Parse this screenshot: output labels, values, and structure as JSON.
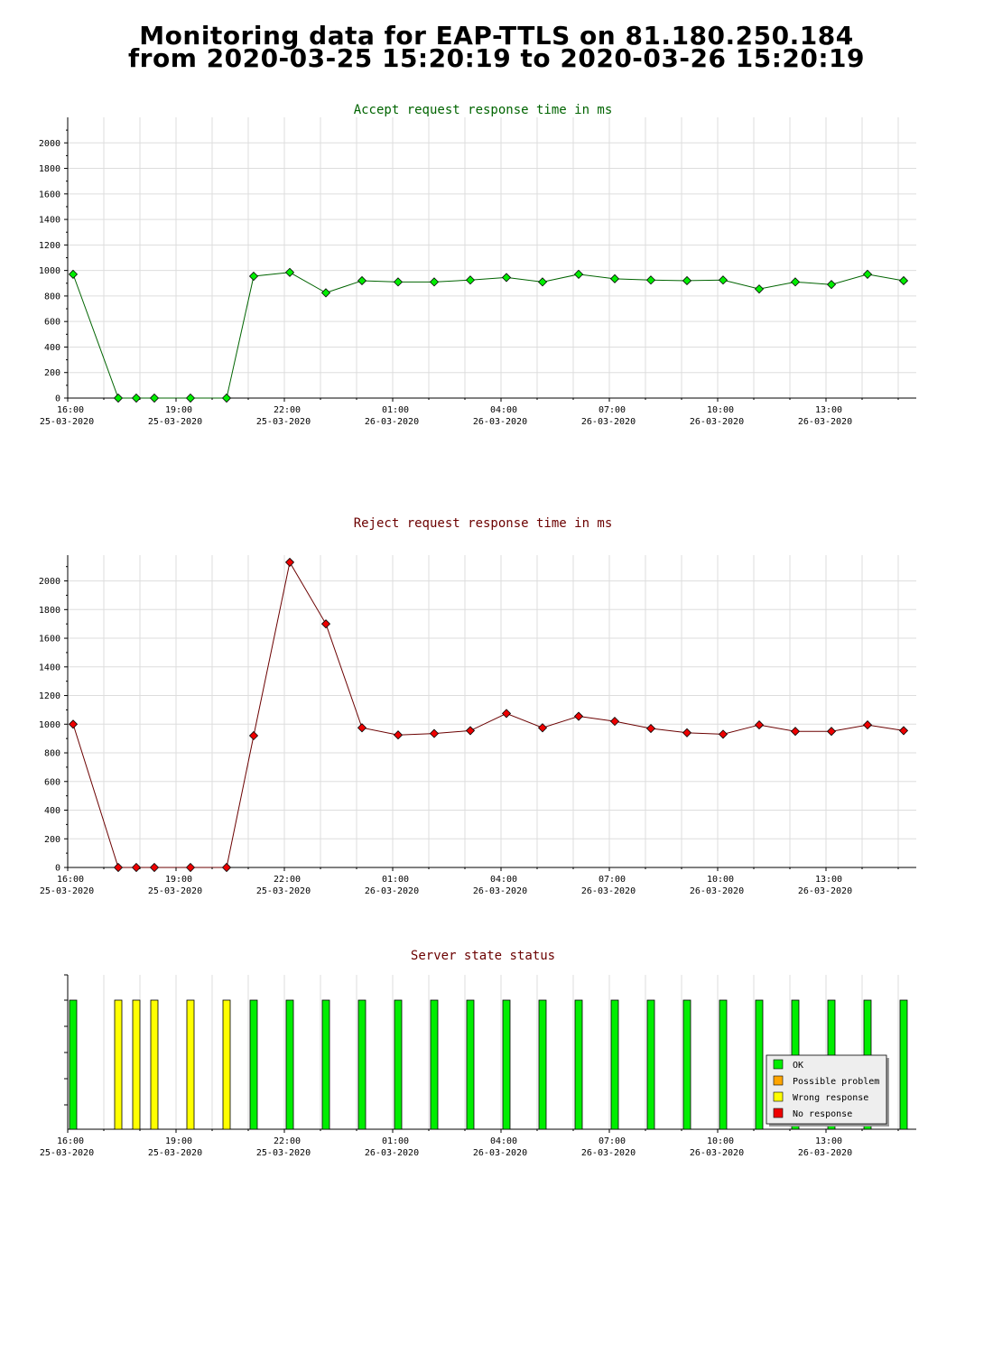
{
  "page": {
    "title_line1": "Monitoring data for EAP-TTLS on 81.180.250.184",
    "title_line2": "from 2020-03-25 15:20:19 to 2020-03-26 15:20:19"
  },
  "chart_data": [
    {
      "type": "line",
      "title": "Accept request response time in ms",
      "title_color": "#006400",
      "line_color": "#006400",
      "marker_color": "#00ee00",
      "ylim": [
        0,
        2200
      ],
      "yticks": [
        0,
        200,
        400,
        600,
        800,
        1000,
        1200,
        1400,
        1600,
        1800,
        2000
      ],
      "xlim": [
        0,
        23.5
      ],
      "xticks": [
        {
          "x": 0,
          "time": "16:00",
          "date": "25-03-2020"
        },
        {
          "x": 3,
          "time": "19:00",
          "date": "25-03-2020"
        },
        {
          "x": 6,
          "time": "22:00",
          "date": "25-03-2020"
        },
        {
          "x": 9,
          "time": "01:00",
          "date": "26-03-2020"
        },
        {
          "x": 12,
          "time": "04:00",
          "date": "26-03-2020"
        },
        {
          "x": 15,
          "time": "07:00",
          "date": "26-03-2020"
        },
        {
          "x": 18,
          "time": "10:00",
          "date": "26-03-2020"
        },
        {
          "x": 21,
          "time": "13:00",
          "date": "26-03-2020"
        }
      ],
      "x": [
        0.15,
        1.4,
        1.9,
        2.4,
        3.4,
        4.4,
        5.15,
        6.15,
        7.15,
        8.15,
        9.15,
        10.15,
        11.15,
        12.15,
        13.15,
        14.15,
        15.15,
        16.15,
        17.15,
        18.15,
        19.15,
        20.15,
        21.15,
        22.15,
        23.15
      ],
      "values": [
        970,
        0,
        0,
        0,
        0,
        0,
        955,
        985,
        825,
        920,
        910,
        910,
        925,
        945,
        910,
        970,
        935,
        925,
        920,
        925,
        855,
        910,
        890,
        970,
        920
      ]
    },
    {
      "type": "line",
      "title": "Reject request response time in ms",
      "title_color": "#6b0000",
      "line_color": "#6b0000",
      "marker_color": "#ee0000",
      "ylim": [
        0,
        2180
      ],
      "yticks": [
        0,
        200,
        400,
        600,
        800,
        1000,
        1200,
        1400,
        1600,
        1800,
        2000
      ],
      "xlim": [
        0,
        23.5
      ],
      "xticks": [
        {
          "x": 0,
          "time": "16:00",
          "date": "25-03-2020"
        },
        {
          "x": 3,
          "time": "19:00",
          "date": "25-03-2020"
        },
        {
          "x": 6,
          "time": "22:00",
          "date": "25-03-2020"
        },
        {
          "x": 9,
          "time": "01:00",
          "date": "26-03-2020"
        },
        {
          "x": 12,
          "time": "04:00",
          "date": "26-03-2020"
        },
        {
          "x": 15,
          "time": "07:00",
          "date": "26-03-2020"
        },
        {
          "x": 18,
          "time": "10:00",
          "date": "26-03-2020"
        },
        {
          "x": 21,
          "time": "13:00",
          "date": "26-03-2020"
        }
      ],
      "x": [
        0.15,
        1.4,
        1.9,
        2.4,
        3.4,
        4.4,
        5.15,
        6.15,
        7.15,
        8.15,
        9.15,
        10.15,
        11.15,
        12.15,
        13.15,
        14.15,
        15.15,
        16.15,
        17.15,
        18.15,
        19.15,
        20.15,
        21.15,
        22.15,
        23.15
      ],
      "values": [
        1000,
        0,
        0,
        0,
        0,
        0,
        920,
        2130,
        1700,
        975,
        925,
        935,
        955,
        1075,
        975,
        1055,
        1020,
        970,
        940,
        930,
        995,
        950,
        950,
        995,
        955
      ]
    },
    {
      "type": "bar",
      "title": "Server state status",
      "title_color": "#6b0000",
      "xlim": [
        0,
        23.5
      ],
      "xticks": [
        {
          "x": 0,
          "time": "16:00",
          "date": "25-03-2020"
        },
        {
          "x": 3,
          "time": "19:00",
          "date": "25-03-2020"
        },
        {
          "x": 6,
          "time": "22:00",
          "date": "25-03-2020"
        },
        {
          "x": 9,
          "time": "01:00",
          "date": "26-03-2020"
        },
        {
          "x": 12,
          "time": "04:00",
          "date": "26-03-2020"
        },
        {
          "x": 15,
          "time": "07:00",
          "date": "26-03-2020"
        },
        {
          "x": 18,
          "time": "10:00",
          "date": "26-03-2020"
        },
        {
          "x": 21,
          "time": "13:00",
          "date": "26-03-2020"
        }
      ],
      "x": [
        0.15,
        1.4,
        1.9,
        2.4,
        3.4,
        4.4,
        5.15,
        6.15,
        7.15,
        8.15,
        9.15,
        10.15,
        11.15,
        12.15,
        13.15,
        14.15,
        15.15,
        16.15,
        17.15,
        18.15,
        19.15,
        20.15,
        21.15,
        22.15,
        23.15
      ],
      "states": [
        "ok",
        "wrong",
        "wrong",
        "wrong",
        "wrong",
        "wrong",
        "ok",
        "ok",
        "ok",
        "ok",
        "ok",
        "ok",
        "ok",
        "ok",
        "ok",
        "ok",
        "ok",
        "ok",
        "ok",
        "ok",
        "ok",
        "ok",
        "ok",
        "ok",
        "ok"
      ],
      "legend": [
        {
          "key": "ok",
          "label": "OK",
          "color": "#00ee00"
        },
        {
          "key": "possible",
          "label": "Possible problem",
          "color": "#ffa500"
        },
        {
          "key": "wrong",
          "label": "Wrong response",
          "color": "#ffff00"
        },
        {
          "key": "none",
          "label": "No response",
          "color": "#ee0000"
        }
      ],
      "legend_position": "bottom-right"
    }
  ]
}
